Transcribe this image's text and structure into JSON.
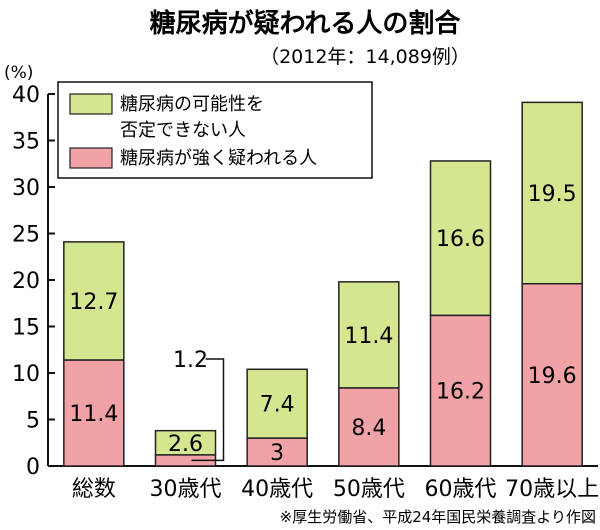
{
  "title": "糖尿病が疑われる人の割合",
  "subtitle": "（2012年：14,089例）",
  "source_note": "※厚生労働省、平成24年国民栄養調査より作図",
  "chart_data": {
    "type": "bar",
    "stacked": true,
    "y_unit": "(%)",
    "ylim": [
      0,
      40
    ],
    "y_ticks": [
      0,
      5,
      10,
      15,
      20,
      25,
      30,
      35,
      40
    ],
    "grid": false,
    "legend_position": "top-left",
    "categories": [
      "総数",
      "30歳代",
      "40歳代",
      "50歳代",
      "60歳代",
      "70歳以上"
    ],
    "series": [
      {
        "name": "糖尿病が強く疑われる人",
        "legend_lines": [
          "糖尿病が強く疑われる人"
        ],
        "color": "#f0a2a6",
        "values": [
          11.4,
          1.2,
          3,
          8.4,
          16.2,
          19.6
        ],
        "labels": [
          "11.4",
          "1.2",
          "3",
          "8.4",
          "16.2",
          "19.6"
        ]
      },
      {
        "name": "糖尿病の可能性を否定できない人",
        "legend_lines": [
          "糖尿病の可能性を",
          "否定できない人"
        ],
        "color": "#d4e68f",
        "values": [
          12.7,
          2.6,
          7.4,
          11.4,
          16.6,
          19.5
        ],
        "labels": [
          "12.7",
          "2.6",
          "7.4",
          "11.4",
          "16.6",
          "19.5"
        ]
      }
    ]
  }
}
